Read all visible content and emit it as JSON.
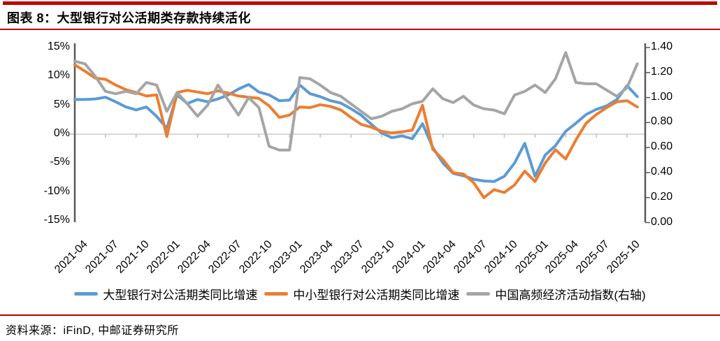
{
  "header": {
    "title": "图表 8：大型银行对公活期类存款持续活化"
  },
  "footer": {
    "source": "资料来源：iFinD, 中邮证券研究所"
  },
  "colors": {
    "accent_red": "#C00000",
    "blue": "#5B9BD5",
    "orange": "#ED7D31",
    "gray": "#A5A5A5",
    "axis_line": "#595959",
    "gridline": "#D9D9D9",
    "tick_mark": "#BFBFBF"
  },
  "chart_data": {
    "type": "line",
    "title": "大型银行对公活期类存款持续活化",
    "x": [
      "2021-04",
      "2021-05",
      "2021-06",
      "2021-07",
      "2021-08",
      "2021-09",
      "2021-10",
      "2021-11",
      "2021-12",
      "2022-01",
      "2022-02",
      "2022-03",
      "2022-04",
      "2022-05",
      "2022-06",
      "2022-07",
      "2022-08",
      "2022-09",
      "2022-10",
      "2022-11",
      "2022-12",
      "2023-01",
      "2023-02",
      "2023-03",
      "2023-04",
      "2023-05",
      "2023-06",
      "2023-07",
      "2023-08",
      "2023-09",
      "2023-10",
      "2023-11",
      "2023-12",
      "2024-01",
      "2024-02",
      "2024-03",
      "2024-04",
      "2024-05",
      "2024-06",
      "2024-07",
      "2024-08",
      "2024-09",
      "2024-10",
      "2024-11",
      "2024-12",
      "2025-01",
      "2025-02",
      "2025-03",
      "2025-04",
      "2025-05",
      "2025-06",
      "2025-07",
      "2025-08",
      "2025-09",
      "2025-10",
      "2025-11"
    ],
    "x_tick_labels": [
      "2021-04",
      "2021-07",
      "2021-10",
      "2022-01",
      "2022-04",
      "2022-07",
      "2022-10",
      "2023-01",
      "2023-04",
      "2023-07",
      "2023-10",
      "2024-01",
      "2024-04",
      "2024-07",
      "2024-10",
      "2025-01",
      "2025-04",
      "2025-07",
      "2025-10"
    ],
    "x_tick_interval": 3,
    "left_axis": {
      "ticks": [
        "15%",
        "10%",
        "5%",
        "0%",
        "-5%",
        "-10%",
        "-15%"
      ],
      "range": [
        -15,
        15
      ],
      "unit": "%"
    },
    "right_axis": {
      "ticks": [
        "1.40",
        "1.20",
        "1.00",
        "0.80",
        "0.60",
        "0.40",
        "0.20",
        "0.00"
      ],
      "range": [
        0,
        1.4
      ]
    },
    "grid": "zero-line-only",
    "legend_position": "bottom",
    "series": [
      {
        "name": "大型银行对公活期类同比增速",
        "axis": "left",
        "color": "#5B9BD5",
        "values": [
          6.0,
          6.0,
          6.1,
          6.4,
          5.6,
          4.7,
          4.2,
          4.7,
          3.1,
          1.0,
          6.8,
          5.3,
          6.0,
          5.6,
          6.1,
          6.8,
          7.8,
          8.6,
          7.3,
          6.8,
          5.8,
          5.9,
          8.5,
          7.0,
          6.5,
          5.8,
          5.4,
          4.4,
          3.3,
          1.7,
          0.2,
          -0.6,
          -0.3,
          -0.8,
          1.8,
          -2.3,
          -5.0,
          -6.8,
          -7.2,
          -7.8,
          -8.1,
          -8.2,
          -7.3,
          -5.0,
          -1.6,
          -7.3,
          -3.6,
          -2.0,
          0.5,
          1.9,
          3.4,
          4.3,
          4.9,
          6.0,
          8.4,
          6.5
        ]
      },
      {
        "name": "中小型银行对公活期类同比增速",
        "axis": "left",
        "color": "#ED7D31",
        "values": [
          12.0,
          10.9,
          9.7,
          9.5,
          8.5,
          7.7,
          7.2,
          6.6,
          6.8,
          -0.4,
          7.2,
          7.6,
          7.3,
          7.0,
          7.5,
          7.1,
          6.6,
          6.4,
          6.2,
          4.9,
          2.9,
          3.3,
          4.7,
          4.6,
          5.1,
          4.8,
          4.2,
          2.9,
          1.7,
          1.2,
          0.5,
          0.2,
          0.4,
          0.7,
          5.0,
          -2.6,
          -4.4,
          -6.7,
          -6.9,
          -8.4,
          -11.0,
          -9.6,
          -10.1,
          -8.8,
          -6.4,
          -8.2,
          -5.0,
          -2.7,
          -4.3,
          -1.0,
          1.9,
          3.4,
          4.6,
          5.6,
          5.8,
          4.7
        ]
      },
      {
        "name": "中国高频经济活动指数(右轴)",
        "axis": "right",
        "color": "#A5A5A5",
        "values": [
          1.29,
          1.27,
          1.17,
          1.05,
          1.03,
          1.05,
          1.03,
          1.12,
          1.1,
          0.89,
          1.04,
          0.95,
          0.85,
          0.94,
          1.1,
          0.98,
          0.86,
          1.0,
          0.92,
          0.61,
          0.58,
          0.58,
          1.16,
          1.15,
          1.1,
          1.04,
          1.01,
          0.95,
          0.89,
          0.83,
          0.85,
          0.89,
          0.91,
          0.95,
          0.97,
          1.07,
          0.99,
          0.96,
          1.01,
          0.94,
          0.91,
          0.9,
          0.87,
          1.02,
          1.05,
          1.1,
          1.04,
          1.15,
          1.36,
          1.12,
          1.11,
          1.11,
          1.06,
          1.01,
          1.08,
          1.27
        ]
      }
    ]
  }
}
